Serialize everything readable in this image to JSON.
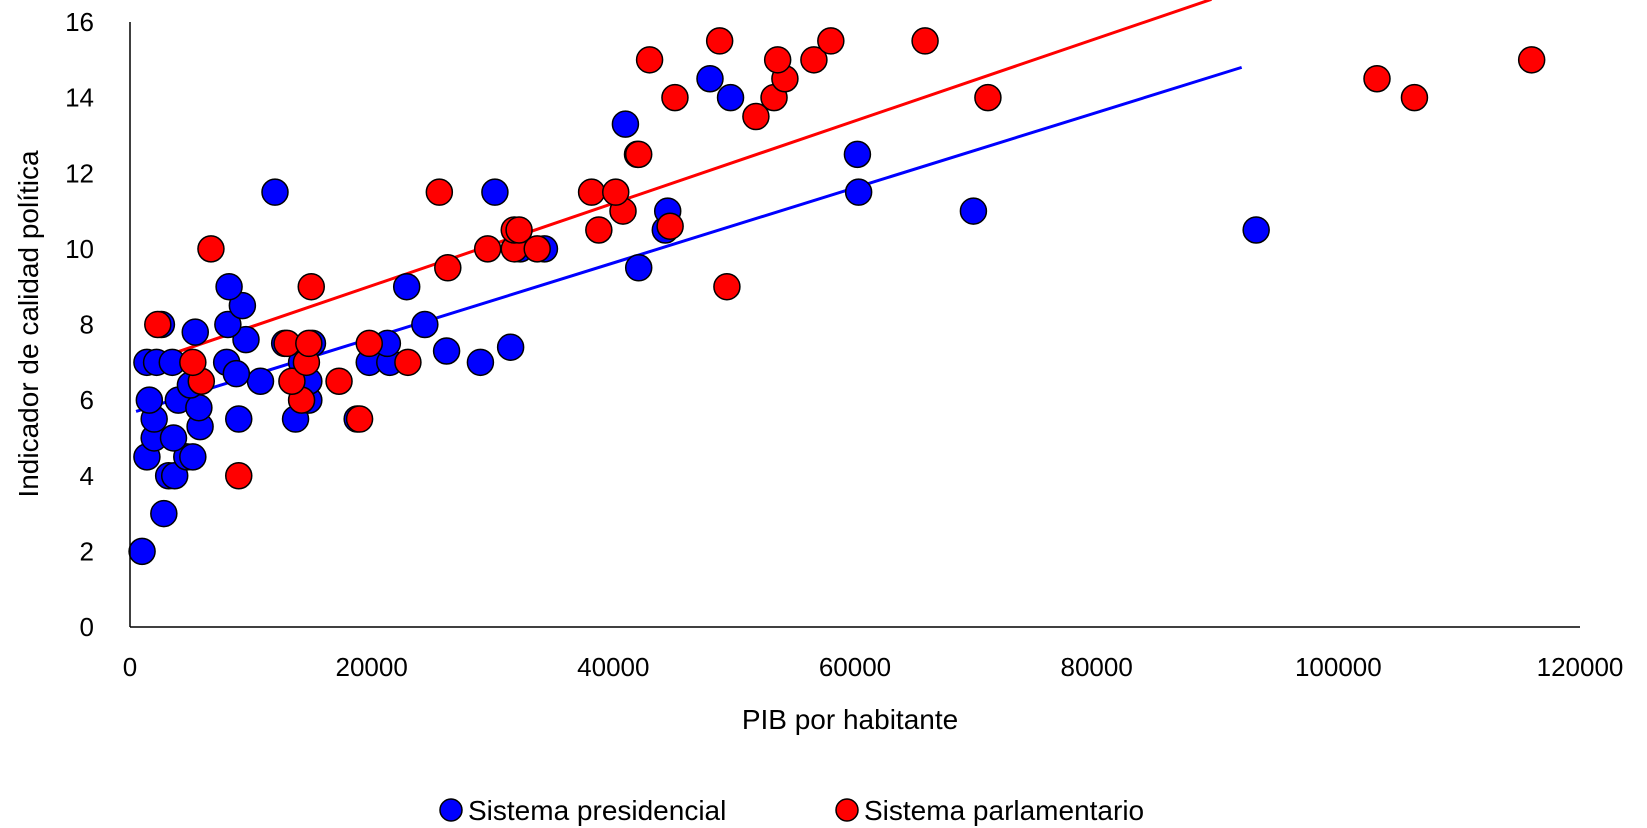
{
  "chart_data": {
    "type": "scatter",
    "title": "",
    "xlabel": "PIB por habitante",
    "ylabel": "Indicador de calidad política",
    "xlim": [
      0,
      120000
    ],
    "ylim": [
      0,
      16
    ],
    "x_ticks": [
      "0",
      "20000",
      "40000",
      "60000",
      "80000",
      "100000",
      "120000"
    ],
    "y_ticks": [
      "0",
      "2",
      "4",
      "6",
      "8",
      "10",
      "12",
      "14",
      "16"
    ],
    "grid": false,
    "legend_position": "bottom",
    "series": [
      {
        "name": "Sistema presidencial",
        "color": "#0000ff",
        "points": [
          [
            1000,
            2
          ],
          [
            2800,
            3
          ],
          [
            3200,
            4
          ],
          [
            3700,
            4
          ],
          [
            1400,
            4.5
          ],
          [
            4700,
            4.5
          ],
          [
            5200,
            4.5
          ],
          [
            2000,
            5
          ],
          [
            3600,
            5
          ],
          [
            2000,
            5.5
          ],
          [
            5800,
            5.3
          ],
          [
            9000,
            5.5
          ],
          [
            13700,
            5.5
          ],
          [
            18800,
            5.5
          ],
          [
            1600,
            6
          ],
          [
            4000,
            6
          ],
          [
            5700,
            5.8
          ],
          [
            14800,
            6
          ],
          [
            5000,
            6.4
          ],
          [
            10800,
            6.5
          ],
          [
            14800,
            6.5
          ],
          [
            1400,
            7
          ],
          [
            2200,
            7
          ],
          [
            3500,
            7
          ],
          [
            8000,
            7
          ],
          [
            14200,
            7
          ],
          [
            19800,
            7
          ],
          [
            21500,
            7
          ],
          [
            29000,
            7
          ],
          [
            8800,
            6.7
          ],
          [
            26200,
            7.3
          ],
          [
            31500,
            7.4
          ],
          [
            12800,
            7.5
          ],
          [
            15100,
            7.5
          ],
          [
            21300,
            7.5
          ],
          [
            9600,
            7.6
          ],
          [
            5400,
            7.8
          ],
          [
            2600,
            8
          ],
          [
            8100,
            8
          ],
          [
            24400,
            8
          ],
          [
            9300,
            8.5
          ],
          [
            8200,
            9
          ],
          [
            22900,
            9
          ],
          [
            42100,
            9.5
          ],
          [
            32300,
            10
          ],
          [
            34300,
            10
          ],
          [
            44300,
            10.5
          ],
          [
            93200,
            10.5
          ],
          [
            44500,
            11
          ],
          [
            69800,
            11
          ],
          [
            12000,
            11.5
          ],
          [
            30200,
            11.5
          ],
          [
            60300,
            11.5
          ],
          [
            42000,
            12.5
          ],
          [
            60200,
            12.5
          ],
          [
            41000,
            13.3
          ],
          [
            49700,
            14
          ],
          [
            48000,
            14.5
          ]
        ]
      },
      {
        "name": "Sistema parlamentario",
        "color": "#ff0000",
        "points": [
          [
            9000,
            4
          ],
          [
            19000,
            5.5
          ],
          [
            14200,
            6
          ],
          [
            13400,
            6.5
          ],
          [
            17300,
            6.5
          ],
          [
            5900,
            6.5
          ],
          [
            5200,
            7
          ],
          [
            14600,
            7
          ],
          [
            23000,
            7
          ],
          [
            13000,
            7.5
          ],
          [
            14800,
            7.5
          ],
          [
            19800,
            7.5
          ],
          [
            2300,
            8
          ],
          [
            15000,
            9
          ],
          [
            49400,
            9
          ],
          [
            26300,
            9.5
          ],
          [
            6700,
            10
          ],
          [
            29600,
            10
          ],
          [
            31800,
            10
          ],
          [
            33700,
            10
          ],
          [
            31800,
            10.5
          ],
          [
            32200,
            10.5
          ],
          [
            38800,
            10.5
          ],
          [
            44700,
            10.6
          ],
          [
            40800,
            11
          ],
          [
            25600,
            11.5
          ],
          [
            38200,
            11.5
          ],
          [
            40200,
            11.5
          ],
          [
            42100,
            12.5
          ],
          [
            51800,
            13.5
          ],
          [
            53300,
            14
          ],
          [
            45100,
            14
          ],
          [
            71000,
            14
          ],
          [
            106300,
            14
          ],
          [
            54200,
            14.5
          ],
          [
            103200,
            14.5
          ],
          [
            43000,
            15
          ],
          [
            53600,
            15
          ],
          [
            56600,
            15
          ],
          [
            116000,
            15
          ],
          [
            48800,
            15.5
          ],
          [
            58000,
            15.5
          ],
          [
            65800,
            15.5
          ]
        ]
      }
    ],
    "trendlines": [
      {
        "series": "Sistema presidencial",
        "color": "#0000ff",
        "x": [
          500,
          92000
        ],
        "y": [
          5.7,
          14.8
        ]
      },
      {
        "series": "Sistema parlamentario",
        "color": "#ff0000",
        "x": [
          500,
          89500
        ],
        "y": [
          6.9,
          16.6
        ]
      }
    ]
  }
}
